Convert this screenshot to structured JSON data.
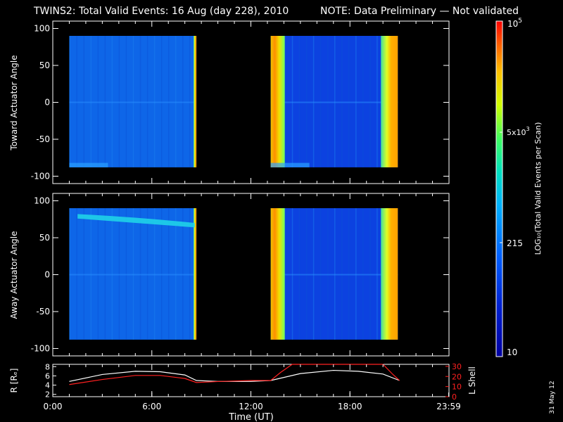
{
  "header": {
    "title": "TWINS2: Total Valid Events: 16 Aug (day 228), 2010",
    "note": "NOTE: Data Preliminary — Not validated",
    "note_color": "#ff2020",
    "stamp": "31 May 12"
  },
  "chart_data": [
    {
      "type": "heatmap",
      "ylabel": "Toward Actuator Angle",
      "xlabel": "",
      "xlim": [
        0,
        24
      ],
      "ylim": [
        -110,
        110
      ],
      "yticks": [
        "100",
        "50",
        "0",
        "-50",
        "-100"
      ],
      "data_blocks_hours": [
        [
          1.0,
          8.7
        ],
        [
          13.2,
          20.9
        ]
      ],
      "angle_range": [
        -88,
        90
      ],
      "colorscale": "log",
      "colorbar": {
        "min": 10,
        "max": 100000,
        "tick_labels": [
          "10",
          "215",
          "5x10³",
          "10⁵"
        ],
        "label": "LOG₁₀(Total Valid Events per Scan)"
      }
    },
    {
      "type": "heatmap",
      "ylabel": "Away Actuator Angle",
      "xlabel": "",
      "xlim": [
        0,
        24
      ],
      "ylim": [
        -110,
        110
      ],
      "yticks": [
        "100",
        "50",
        "0",
        "-50",
        "-100"
      ],
      "data_blocks_hours": [
        [
          1.0,
          8.7
        ],
        [
          13.2,
          20.9
        ]
      ],
      "angle_range": [
        -88,
        90
      ],
      "features": "bright band near +75 deg during first block"
    },
    {
      "type": "line",
      "xlabel": "Time (UT)",
      "x_tick_labels": [
        "0:00",
        "6:00",
        "12:00",
        "18:00",
        "23:59"
      ],
      "ylabel_left": "R [Rₑ]",
      "yticks_left": [
        "8",
        "6",
        "4",
        "2"
      ],
      "ylim_left": [
        1.5,
        8.5
      ],
      "ylabel_right": "L Shell",
      "yticks_right": [
        "30",
        "20",
        "10",
        "0"
      ],
      "ylim_right": [
        0,
        32
      ],
      "series": [
        {
          "name": "R",
          "color": "#ffffff",
          "x": [
            1.0,
            3.0,
            5.0,
            6.5,
            8.0,
            8.7,
            10.0,
            12.0,
            13.2,
            15.0,
            17.0,
            18.5,
            20.0,
            21.0
          ],
          "y": [
            4.8,
            6.3,
            7.0,
            6.9,
            6.2,
            5.0,
            4.8,
            4.8,
            5.0,
            6.5,
            7.2,
            7.0,
            6.4,
            5.0
          ]
        },
        {
          "name": "L Shell",
          "color": "#ff2020",
          "x": [
            1.0,
            3.0,
            5.0,
            6.5,
            8.0,
            8.7,
            10.0,
            12.0,
            13.2,
            13.8,
            14.5,
            20.0,
            20.6,
            21.0
          ],
          "y": [
            12,
            17,
            21,
            21,
            18,
            14,
            15,
            16,
            16,
            24,
            34,
            34,
            22,
            16
          ]
        }
      ]
    }
  ]
}
